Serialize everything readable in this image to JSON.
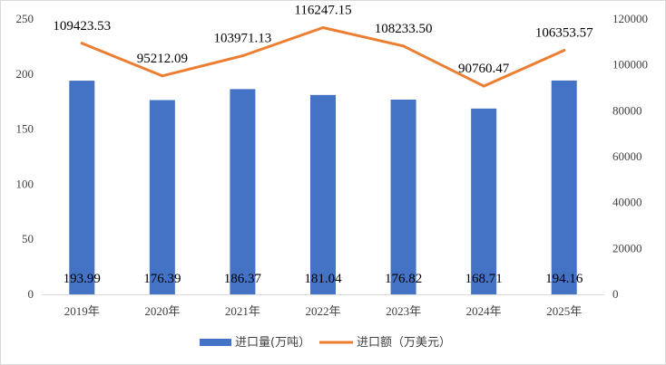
{
  "chart_data": {
    "type": "bar+line",
    "categories": [
      "2019年",
      "2020年",
      "2021年",
      "2022年",
      "2023年",
      "2024年",
      "2025年"
    ],
    "series": [
      {
        "name": "进口量(万吨）",
        "type": "bar",
        "axis": "left",
        "color": "#4472C4",
        "values": [
          193.99,
          176.39,
          186.37,
          181.04,
          176.82,
          168.71,
          194.16
        ],
        "labels": [
          "193.99",
          "176.39",
          "186.37",
          "181.04",
          "176.82",
          "168.71",
          "194.16"
        ]
      },
      {
        "name": "进口额（万美元）",
        "type": "line",
        "axis": "right",
        "color": "#ED7D31",
        "values": [
          109423.53,
          95212.09,
          103971.13,
          116247.15,
          108233.5,
          90760.47,
          106353.57
        ],
        "labels": [
          "109423.53",
          "95212.09",
          "103971.13",
          "116247.15",
          "108233.50",
          "90760.47",
          "106353.57"
        ]
      }
    ],
    "left_axis": {
      "min": 0,
      "max": 250,
      "ticks": [
        "0",
        "50",
        "100",
        "150",
        "200",
        "250"
      ]
    },
    "right_axis": {
      "min": 0,
      "max": 120000,
      "ticks": [
        "0",
        "20000",
        "40000",
        "60000",
        "80000",
        "100000",
        "120000"
      ]
    },
    "title": "",
    "grid": false,
    "legend_position": "bottom"
  }
}
